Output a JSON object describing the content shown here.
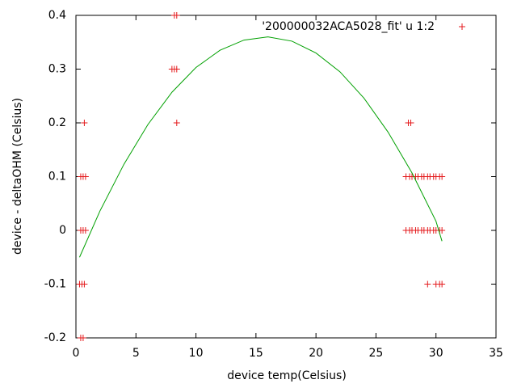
{
  "chart_data": {
    "type": "scatter",
    "xlabel": "device temp(Celsius)",
    "ylabel": "device - deltaOHM (Celsius)",
    "xlim": [
      0,
      35
    ],
    "xticks": [
      0,
      5,
      10,
      15,
      20,
      25,
      30,
      35
    ],
    "ylim": [
      -0.2,
      0.4
    ],
    "yticks": [
      -0.2,
      -0.1,
      0,
      0.1,
      0.2,
      0.3,
      0.4
    ],
    "legend": "top-right",
    "series": [
      {
        "name": "'200000032ACA5028_fit' u 1:2",
        "color": "#e41a1c",
        "marker": "+",
        "x": [
          8.2,
          8.4,
          8.0,
          8.2,
          8.4,
          0.7,
          8.4,
          27.7,
          27.9,
          0.4,
          0.6,
          0.8,
          27.5,
          27.8,
          28.0,
          28.3,
          28.5,
          28.8,
          29.0,
          29.3,
          29.5,
          29.8,
          30.0,
          30.3,
          30.5,
          0.4,
          0.6,
          0.8,
          27.5,
          27.8,
          28.0,
          28.3,
          28.5,
          28.8,
          29.0,
          29.3,
          29.5,
          29.8,
          30.0,
          30.3,
          30.5,
          0.3,
          0.5,
          0.7,
          29.3,
          30.0,
          30.3,
          30.5,
          0.4,
          0.6
        ],
        "values": [
          0.4,
          0.4,
          0.3,
          0.3,
          0.3,
          0.2,
          0.2,
          0.2,
          0.2,
          0.1,
          0.1,
          0.1,
          0.1,
          0.1,
          0.1,
          0.1,
          0.1,
          0.1,
          0.1,
          0.1,
          0.1,
          0.1,
          0.1,
          0.1,
          0.1,
          0,
          0,
          0,
          0,
          0,
          0,
          0,
          0,
          0,
          0,
          0,
          0,
          0,
          0,
          0,
          0,
          -0.1,
          -0.1,
          -0.1,
          -0.1,
          -0.1,
          -0.1,
          -0.1,
          -0.2,
          -0.2
        ]
      },
      {
        "color": "#00a000",
        "style": "line",
        "x": [
          0.3,
          2,
          4,
          6,
          8,
          10,
          12,
          14,
          16,
          18,
          20,
          22,
          24,
          26,
          28,
          30,
          30.5
        ],
        "values": [
          -0.05,
          0.036,
          0.123,
          0.197,
          0.257,
          0.303,
          0.335,
          0.354,
          0.36,
          0.352,
          0.33,
          0.295,
          0.246,
          0.183,
          0.107,
          0.017,
          -0.02
        ]
      }
    ]
  }
}
